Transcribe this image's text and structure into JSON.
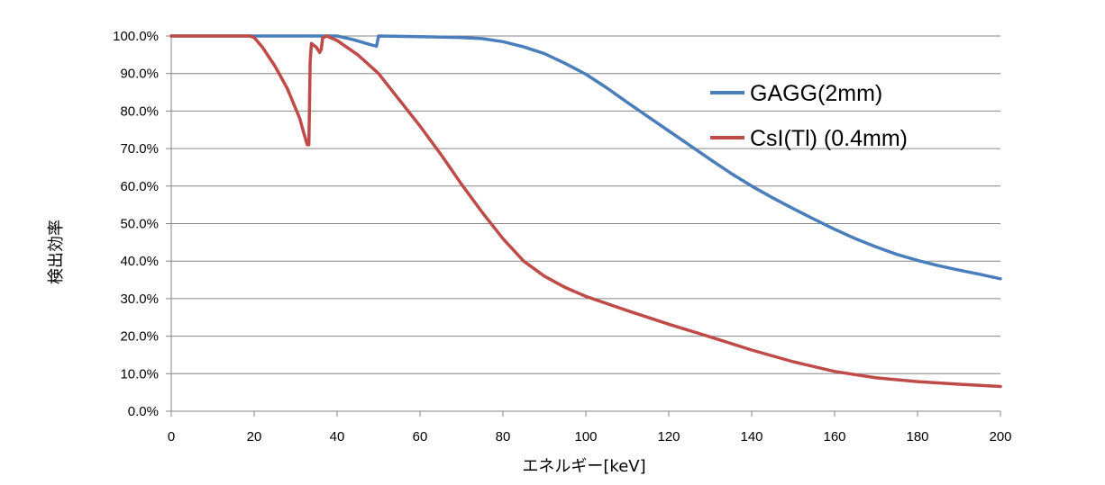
{
  "chart_data": {
    "type": "line",
    "title": "",
    "xlabel": "エネルギー[keV]",
    "ylabel": "検出効率",
    "xlim": [
      0,
      200
    ],
    "ylim": [
      0,
      100
    ],
    "x_ticks": [
      "0",
      "20",
      "40",
      "60",
      "80",
      "100",
      "120",
      "140",
      "160",
      "180",
      "200"
    ],
    "y_ticks": [
      "0.0%",
      "10.0%",
      "20.0%",
      "30.0%",
      "40.0%",
      "50.0%",
      "60.0%",
      "70.0%",
      "80.0%",
      "90.0%",
      "100.0%"
    ],
    "grid": "horizontal",
    "legend_position": "top-right",
    "series": [
      {
        "name": "GAGG(2mm)",
        "color": "#4a7ebb",
        "points": [
          [
            0,
            100
          ],
          [
            20,
            100
          ],
          [
            30,
            100
          ],
          [
            40,
            100
          ],
          [
            44,
            99
          ],
          [
            48,
            97.7
          ],
          [
            49.5,
            97.3
          ],
          [
            50,
            100
          ],
          [
            60,
            99.8
          ],
          [
            70,
            99.6
          ],
          [
            75,
            99.3
          ],
          [
            80,
            98.5
          ],
          [
            85,
            97.1
          ],
          [
            90,
            95.3
          ],
          [
            95,
            92.7
          ],
          [
            100,
            89.8
          ],
          [
            105,
            86.2
          ],
          [
            110,
            82.3
          ],
          [
            115,
            78.5
          ],
          [
            120,
            74.7
          ],
          [
            125,
            70.9
          ],
          [
            130,
            67.1
          ],
          [
            135,
            63.4
          ],
          [
            140,
            60.0
          ],
          [
            145,
            56.9
          ],
          [
            150,
            54.0
          ],
          [
            155,
            51.2
          ],
          [
            160,
            48.5
          ],
          [
            165,
            46.0
          ],
          [
            170,
            43.8
          ],
          [
            175,
            41.8
          ],
          [
            180,
            40.2
          ],
          [
            185,
            38.8
          ],
          [
            190,
            37.6
          ],
          [
            195,
            36.5
          ],
          [
            200,
            35.3
          ]
        ]
      },
      {
        "name": "CsI(Tl) (0.4mm)",
        "color": "#be4b48",
        "points": [
          [
            0,
            100
          ],
          [
            19,
            100
          ],
          [
            20,
            99.6
          ],
          [
            22,
            97
          ],
          [
            25,
            92
          ],
          [
            28,
            86
          ],
          [
            31,
            78
          ],
          [
            32,
            74
          ],
          [
            32.8,
            71
          ],
          [
            33.2,
            71
          ],
          [
            33.5,
            93
          ],
          [
            33.8,
            98
          ],
          [
            35,
            97
          ],
          [
            35.8,
            95.6
          ],
          [
            36.2,
            96.5
          ],
          [
            36.5,
            99.5
          ],
          [
            37.5,
            100
          ],
          [
            40,
            98.8
          ],
          [
            45,
            95
          ],
          [
            50,
            90
          ],
          [
            55,
            83
          ],
          [
            60,
            76
          ],
          [
            65,
            68.5
          ],
          [
            70,
            60.5
          ],
          [
            75,
            53
          ],
          [
            80,
            46
          ],
          [
            85,
            40
          ],
          [
            90,
            36
          ],
          [
            95,
            33
          ],
          [
            100,
            30.6
          ],
          [
            110,
            26.8
          ],
          [
            120,
            23.2
          ],
          [
            130,
            19.8
          ],
          [
            140,
            16.3
          ],
          [
            150,
            13.2
          ],
          [
            160,
            10.6
          ],
          [
            170,
            8.9
          ],
          [
            180,
            7.9
          ],
          [
            190,
            7.2
          ],
          [
            200,
            6.6
          ]
        ]
      }
    ]
  }
}
